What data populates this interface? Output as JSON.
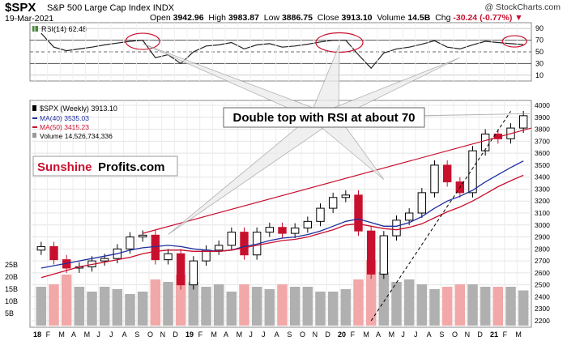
{
  "header": {
    "symbol": "$SPX",
    "index_name": "S&P 500 Large Cap Index",
    "exchange": "INDX",
    "date": "19-Mar-2021",
    "watermark": "@ StockCharts.com",
    "quote": {
      "open_label": "Open",
      "open": "3942.96",
      "high_label": "High",
      "high": "3983.87",
      "low_label": "Low",
      "low": "3886.75",
      "close_label": "Close",
      "close": "3913.10",
      "volume_label": "Volume",
      "volume": "14.5B",
      "chg_label": "Chg",
      "chg": "-30.24 (-0.77%)"
    }
  },
  "rsi_panel": {
    "legend": "RSI(14) 62.48",
    "levels": [
      90,
      70,
      50,
      30,
      10
    ]
  },
  "price_panel": {
    "legend": "$SPX (Weekly) 3913.10",
    "ma40_label": "MA(40) 3535.03",
    "ma50_label": "MA(50) 3415.23",
    "volume_label": "Volume 14,526,734,336",
    "y_ticks": [
      2200,
      2300,
      2400,
      2500,
      2600,
      2700,
      2800,
      2900,
      3000,
      3100,
      3200,
      3300,
      3400,
      3500,
      3600,
      3700,
      3800,
      3900,
      4000
    ],
    "vol_ticks": [
      "25B",
      "20B",
      "15B",
      "10B",
      "5B"
    ],
    "x_labels": [
      "18",
      "F",
      "M",
      "A",
      "M",
      "J",
      "J",
      "A",
      "S",
      "O",
      "N",
      "D",
      "19",
      "F",
      "M",
      "A",
      "M",
      "J",
      "J",
      "A",
      "S",
      "O",
      "N",
      "D",
      "20",
      "F",
      "M",
      "A",
      "M",
      "J",
      "J",
      "A",
      "S",
      "O",
      "N",
      "D",
      "21",
      "F",
      "M"
    ]
  },
  "annotation": {
    "callout": "Double top with RSI at about 70",
    "brand_part1": "Sunshine",
    "brand_part2": "Profits.com"
  },
  "colors": {
    "up": "#000000",
    "down": "#c8102e",
    "ma40": "#1f2fa0",
    "ma50": "#c8102e",
    "trendline": "#c8102e",
    "rsi_fill": "#4a8a3a",
    "volume_up": "#b0b0b0",
    "volume_down": "#f2a8a8"
  },
  "chart_data": {
    "type": "candlestick",
    "period": "weekly",
    "x": [
      "2018-01",
      "2018-02",
      "2018-03",
      "2018-04",
      "2018-05",
      "2018-06",
      "2018-07",
      "2018-08",
      "2018-09",
      "2018-10",
      "2018-11",
      "2018-12",
      "2019-01",
      "2019-02",
      "2019-03",
      "2019-04",
      "2019-05",
      "2019-06",
      "2019-07",
      "2019-08",
      "2019-09",
      "2019-10",
      "2019-11",
      "2019-12",
      "2020-01",
      "2020-02",
      "2020-03",
      "2020-04",
      "2020-05",
      "2020-06",
      "2020-07",
      "2020-08",
      "2020-09",
      "2020-10",
      "2020-11",
      "2020-12",
      "2021-01",
      "2021-02",
      "2021-03"
    ],
    "close": [
      2820,
      2710,
      2640,
      2650,
      2700,
      2720,
      2800,
      2900,
      2915,
      2710,
      2760,
      2500,
      2700,
      2790,
      2830,
      2940,
      2750,
      2940,
      2980,
      2930,
      2975,
      3030,
      3140,
      3230,
      3250,
      2950,
      2590,
      2910,
      3040,
      3100,
      3270,
      3500,
      3360,
      3270,
      3620,
      3760,
      3720,
      3810,
      3913
    ],
    "ma40": [
      2640,
      2660,
      2680,
      2700,
      2720,
      2740,
      2760,
      2790,
      2810,
      2820,
      2830,
      2820,
      2800,
      2790,
      2780,
      2790,
      2820,
      2840,
      2870,
      2890,
      2900,
      2920,
      2950,
      2990,
      3030,
      3050,
      3020,
      2990,
      2990,
      3020,
      3070,
      3140,
      3200,
      3240,
      3290,
      3360,
      3420,
      3480,
      3535
    ],
    "ma50": [
      2560,
      2590,
      2620,
      2650,
      2670,
      2690,
      2710,
      2730,
      2760,
      2780,
      2790,
      2790,
      2780,
      2780,
      2780,
      2790,
      2810,
      2830,
      2850,
      2870,
      2880,
      2900,
      2930,
      2960,
      3000,
      3010,
      2990,
      2970,
      2960,
      2980,
      3010,
      3060,
      3110,
      3150,
      3200,
      3260,
      3320,
      3370,
      3415
    ],
    "volume_billions": [
      16,
      17,
      21,
      16,
      14,
      16,
      15,
      13,
      14,
      19,
      18,
      21,
      18,
      16,
      17,
      14,
      17,
      16,
      15,
      17,
      16,
      16,
      14,
      14,
      15,
      19,
      27,
      22,
      18,
      19,
      17,
      15,
      16,
      17,
      17,
      16,
      16,
      16,
      14.5
    ],
    "rsi": [
      82,
      58,
      52,
      55,
      58,
      62,
      65,
      68,
      70,
      40,
      45,
      30,
      50,
      60,
      62,
      66,
      55,
      62,
      64,
      58,
      60,
      63,
      67,
      70,
      70,
      45,
      22,
      48,
      55,
      58,
      63,
      69,
      58,
      55,
      62,
      68,
      66,
      64,
      62.48
    ],
    "y_range": [
      2200,
      4000
    ],
    "rsi_range": [
      0,
      100
    ],
    "ylabel": "",
    "xlabel": ""
  }
}
